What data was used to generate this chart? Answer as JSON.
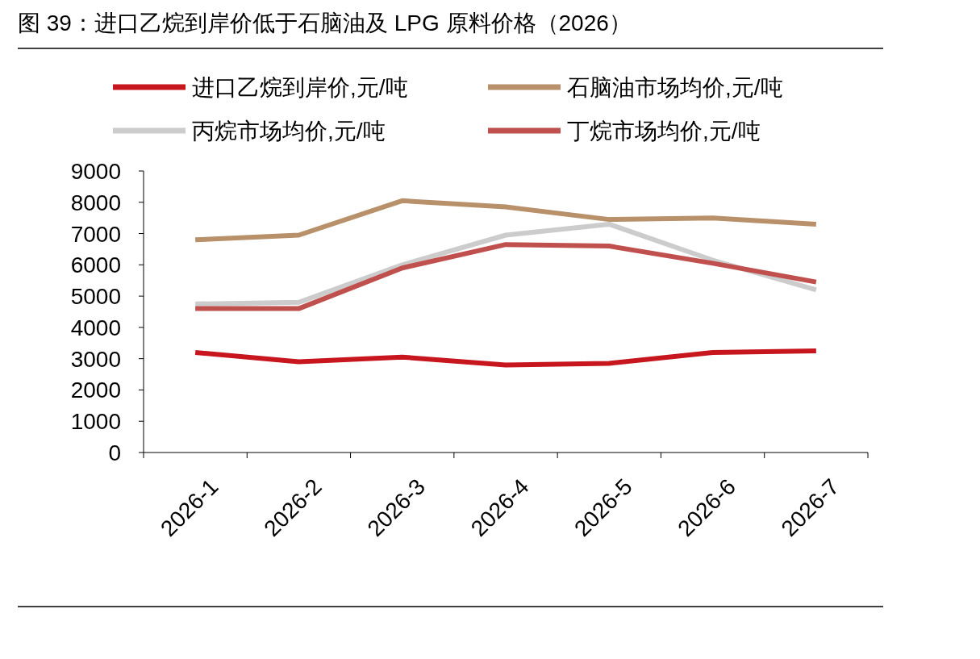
{
  "chart_data": {
    "type": "line",
    "title": "图 39：进口乙烷到岸价低于石脑油及 LPG 原料价格（2026）",
    "categories": [
      "2026-1",
      "2026-2",
      "2026-3",
      "2026-4",
      "2026-5",
      "2026-6",
      "2026-7"
    ],
    "series": [
      {
        "name": "进口乙烷到岸价,元/吨",
        "color": "#c8161e",
        "values": [
          3200,
          2900,
          3050,
          2800,
          2850,
          3200,
          3250
        ]
      },
      {
        "name": "石脑油市场均价,元/吨",
        "color": "#b8906a",
        "values": [
          6800,
          6950,
          8050,
          7850,
          7450,
          7500,
          7300
        ]
      },
      {
        "name": "丙烷市场均价,元/吨",
        "color": "#cccccc",
        "values": [
          4750,
          4800,
          6000,
          6950,
          7300,
          6150,
          5200
        ]
      },
      {
        "name": "丁烷市场均价,元/吨",
        "color": "#c0504d",
        "values": [
          4600,
          4600,
          5900,
          6650,
          6600,
          6050,
          5450
        ]
      }
    ],
    "ylim": [
      0,
      9000
    ],
    "yticks": [
      0,
      1000,
      2000,
      3000,
      4000,
      5000,
      6000,
      7000,
      8000,
      9000
    ],
    "legend": "top"
  }
}
